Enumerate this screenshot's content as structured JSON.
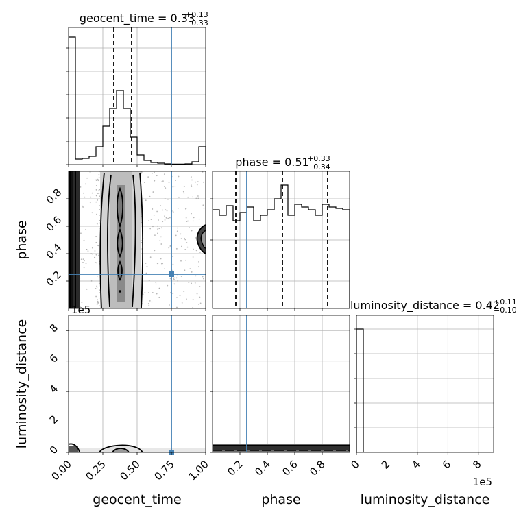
{
  "figure_type": "corner-plot",
  "parameters": [
    "geocent_time",
    "phase",
    "luminosity_distance"
  ],
  "chart_data": [
    {
      "id": "hist-geocent_time",
      "type": "histogram",
      "title": {
        "name": "geocent_time",
        "median": "0.33",
        "plus": "+0.13",
        "minus": "−0.33"
      },
      "xlim": [
        0,
        1
      ],
      "bin_edges": [
        0,
        0.05,
        0.1,
        0.15,
        0.2,
        0.25,
        0.3,
        0.35,
        0.4,
        0.45,
        0.5,
        0.55,
        0.6,
        0.65,
        0.7,
        0.75,
        0.8,
        0.85,
        0.9,
        0.95,
        1.0
      ],
      "relative_heights": [
        0.93,
        0.04,
        0.045,
        0.06,
        0.13,
        0.28,
        0.41,
        0.54,
        0.41,
        0.2,
        0.07,
        0.03,
        0.015,
        0.01,
        0.005,
        0.003,
        0.003,
        0.005,
        0.02,
        0.13
      ],
      "quantile_lines": [
        0.33,
        0.46
      ],
      "truth": 0.75
    },
    {
      "id": "hist-phase",
      "type": "histogram",
      "title": {
        "name": "phase",
        "median": "0.51",
        "plus": "+0.33",
        "minus": "−0.34"
      },
      "xlim": [
        0,
        1
      ],
      "bin_edges": [
        0,
        0.05,
        0.1,
        0.15,
        0.2,
        0.25,
        0.3,
        0.35,
        0.4,
        0.45,
        0.5,
        0.55,
        0.6,
        0.65,
        0.7,
        0.75,
        0.8,
        0.85,
        0.9,
        0.95,
        1.0
      ],
      "relative_heights": [
        0.72,
        0.68,
        0.75,
        0.64,
        0.7,
        0.74,
        0.64,
        0.68,
        0.72,
        0.8,
        0.9,
        0.68,
        0.76,
        0.74,
        0.72,
        0.68,
        0.76,
        0.74,
        0.73,
        0.72
      ],
      "quantile_lines": [
        0.17,
        0.51,
        0.84
      ],
      "truth": 0.25
    },
    {
      "id": "hist-luminosity_distance",
      "type": "histogram",
      "title": {
        "name": "luminosity_distance",
        "median": "0.42",
        "plus": "+0.11",
        "minus": "−0.10"
      },
      "xlim": [
        0,
        900000
      ],
      "xticks": [
        0,
        200000,
        400000,
        600000,
        800000
      ],
      "xtick_labels": [
        "0",
        "2",
        "4",
        "6",
        "8"
      ],
      "offset_label": "1e5",
      "bins": [
        [
          0,
          45000
        ]
      ],
      "truth": 42
    },
    {
      "id": "scatter-geocent_time-phase",
      "type": "2d-density",
      "x": "geocent_time",
      "y": "phase",
      "xlim": [
        0,
        1
      ],
      "ylim": [
        0,
        1
      ],
      "yticks": [
        0.2,
        0.4,
        0.6,
        0.8
      ],
      "ytick_labels": [
        "0.2",
        "0.4",
        "0.6",
        "0.8"
      ],
      "truth": [
        0.75,
        0.25
      ]
    },
    {
      "id": "scatter-geocent_time-luminosity_distance",
      "type": "2d-density",
      "x": "geocent_time",
      "y": "luminosity_distance",
      "xlim": [
        0,
        1
      ],
      "ylim": [
        0,
        900000
      ],
      "xticks": [
        0,
        0.25,
        0.5,
        0.75,
        1.0
      ],
      "xtick_labels": [
        "0.00",
        "0.25",
        "0.50",
        "0.75",
        "1.00"
      ],
      "yticks": [
        0,
        200000,
        400000,
        600000,
        800000
      ],
      "ytick_labels": [
        "0",
        "2",
        "4",
        "6",
        "8"
      ],
      "offset_label": "1e5",
      "truth_x": 0.75
    },
    {
      "id": "scatter-phase-luminosity_distance",
      "type": "2d-density",
      "x": "phase",
      "y": "luminosity_distance",
      "xlim": [
        0,
        1
      ],
      "ylim": [
        0,
        900000
      ],
      "xticks": [
        0.2,
        0.4,
        0.6,
        0.8
      ],
      "xtick_labels": [
        "0.2",
        "0.4",
        "0.6",
        "0.8"
      ],
      "truth_x": 0.25
    }
  ],
  "axis_labels": {
    "x": [
      "geocent_time",
      "phase",
      "luminosity_distance"
    ],
    "y": [
      "phase",
      "luminosity_distance"
    ]
  },
  "colors": {
    "truth": "#4682b4",
    "hist": "#000000",
    "grid": "#b0b0b0",
    "scatter": "#9a9a9a"
  },
  "grid": true
}
